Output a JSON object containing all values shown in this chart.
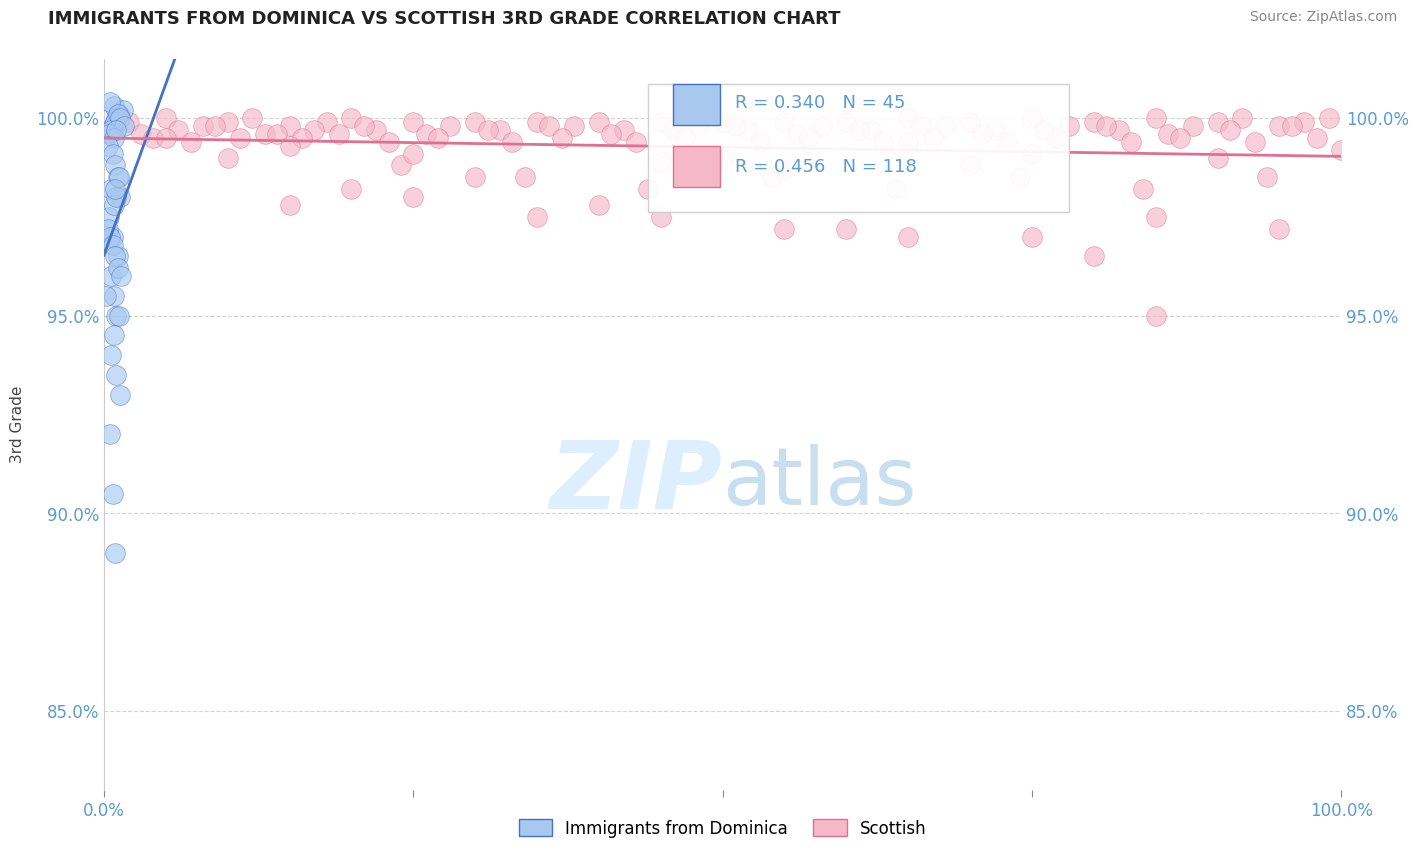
{
  "title": "IMMIGRANTS FROM DOMINICA VS SCOTTISH 3RD GRADE CORRELATION CHART",
  "source_text": "Source: ZipAtlas.com",
  "ylabel": "3rd Grade",
  "legend_label1": "Immigrants from Dominica",
  "legend_label2": "Scottish",
  "R1": 0.34,
  "N1": 45,
  "R2": 0.456,
  "N2": 118,
  "color1": "#a8c8f0",
  "color2": "#f4b8c8",
  "trendline_color1": "#4472c4",
  "trendline_color2": "#e07090",
  "background_color": "#ffffff",
  "watermark_color": "#ddeeff",
  "ylim_min": 83.0,
  "ylim_max": 101.5,
  "xlim_min": 0.0,
  "xlim_max": 1.0,
  "yticks": [
    85.0,
    90.0,
    95.0,
    100.0
  ],
  "xticks": [
    0.0,
    0.25,
    0.5,
    0.75,
    1.0
  ],
  "blue_x": [
    0.008,
    0.012,
    0.015,
    0.005,
    0.01,
    0.007,
    0.009,
    0.011,
    0.006,
    0.013,
    0.004,
    0.016,
    0.008,
    0.01,
    0.003,
    0.007,
    0.009,
    0.011,
    0.006,
    0.013,
    0.004,
    0.008,
    0.01,
    0.012,
    0.009,
    0.007,
    0.011,
    0.006,
    0.008,
    0.01,
    0.003,
    0.005,
    0.007,
    0.009,
    0.011,
    0.014,
    0.002,
    0.012,
    0.008,
    0.006,
    0.01,
    0.013,
    0.005,
    0.007,
    0.009
  ],
  "blue_y": [
    100.3,
    100.1,
    100.2,
    100.4,
    100.0,
    99.8,
    99.9,
    100.1,
    99.7,
    100.0,
    99.6,
    99.8,
    99.5,
    99.7,
    99.3,
    99.1,
    98.8,
    98.5,
    98.2,
    98.0,
    97.5,
    97.8,
    98.0,
    98.5,
    98.2,
    97.0,
    96.5,
    96.0,
    95.5,
    95.0,
    97.2,
    97.0,
    96.8,
    96.5,
    96.2,
    96.0,
    95.5,
    95.0,
    94.5,
    94.0,
    93.5,
    93.0,
    92.0,
    90.5,
    89.0
  ],
  "pink_x": [
    0.02,
    0.05,
    0.08,
    0.1,
    0.12,
    0.15,
    0.18,
    0.2,
    0.22,
    0.25,
    0.28,
    0.3,
    0.32,
    0.35,
    0.38,
    0.4,
    0.42,
    0.45,
    0.48,
    0.5,
    0.52,
    0.55,
    0.58,
    0.6,
    0.62,
    0.65,
    0.68,
    0.7,
    0.72,
    0.75,
    0.78,
    0.8,
    0.82,
    0.85,
    0.88,
    0.9,
    0.92,
    0.95,
    0.97,
    0.99,
    0.03,
    0.06,
    0.09,
    0.13,
    0.17,
    0.21,
    0.26,
    0.31,
    0.36,
    0.41,
    0.46,
    0.51,
    0.56,
    0.61,
    0.66,
    0.71,
    0.76,
    0.81,
    0.86,
    0.91,
    0.96,
    0.04,
    0.07,
    0.11,
    0.14,
    0.16,
    0.19,
    0.23,
    0.27,
    0.33,
    0.37,
    0.43,
    0.47,
    0.53,
    0.57,
    0.63,
    0.67,
    0.73,
    0.77,
    0.83,
    0.87,
    0.93,
    0.98,
    0.24,
    0.34,
    0.44,
    0.54,
    0.64,
    0.74,
    0.84,
    0.94,
    0.15,
    0.35,
    0.55,
    0.75,
    0.95,
    0.25,
    0.45,
    0.65,
    0.85,
    0.1,
    0.3,
    0.5,
    0.7,
    0.9,
    0.2,
    0.4,
    0.6,
    0.8,
    1.0,
    0.05,
    0.15,
    0.25,
    0.45,
    0.55,
    0.65,
    0.75,
    0.85
  ],
  "pink_y": [
    99.9,
    100.0,
    99.8,
    99.9,
    100.0,
    99.8,
    99.9,
    100.0,
    99.7,
    99.9,
    99.8,
    99.9,
    99.7,
    99.9,
    99.8,
    99.9,
    99.7,
    99.9,
    99.8,
    99.9,
    99.7,
    99.9,
    99.8,
    99.9,
    99.7,
    100.0,
    99.8,
    99.9,
    99.7,
    100.0,
    99.8,
    99.9,
    99.7,
    100.0,
    99.8,
    99.9,
    100.0,
    99.8,
    99.9,
    100.0,
    99.6,
    99.7,
    99.8,
    99.6,
    99.7,
    99.8,
    99.6,
    99.7,
    99.8,
    99.6,
    99.7,
    99.8,
    99.6,
    99.7,
    99.8,
    99.6,
    99.7,
    99.8,
    99.6,
    99.7,
    99.8,
    99.5,
    99.4,
    99.5,
    99.6,
    99.5,
    99.6,
    99.4,
    99.5,
    99.4,
    99.5,
    99.4,
    99.5,
    99.4,
    99.5,
    99.4,
    99.5,
    99.4,
    99.5,
    99.4,
    99.5,
    99.4,
    99.5,
    98.8,
    98.5,
    98.2,
    98.5,
    98.2,
    98.5,
    98.2,
    98.5,
    97.8,
    97.5,
    97.2,
    97.0,
    97.2,
    98.0,
    97.5,
    97.0,
    97.5,
    99.0,
    98.5,
    99.0,
    98.8,
    99.0,
    98.2,
    97.8,
    97.2,
    96.5,
    99.2,
    99.5,
    99.3,
    99.1,
    98.9,
    98.7,
    99.4,
    99.1,
    95.0
  ]
}
